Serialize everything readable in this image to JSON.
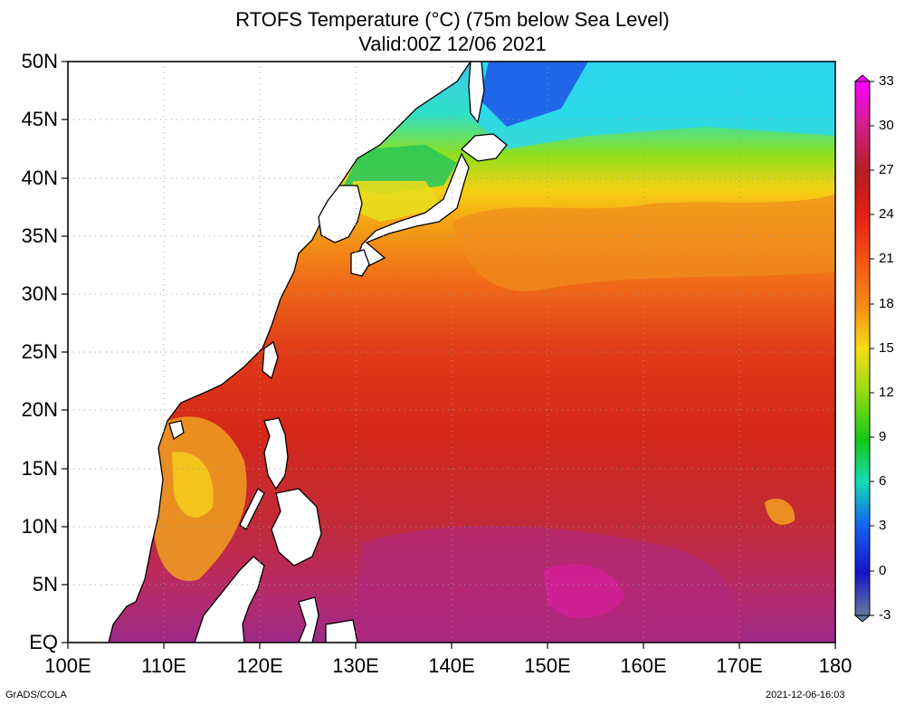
{
  "title": {
    "line1": "RTOFS Temperature (°C) (75m below Sea Level)",
    "line2": "Valid:00Z 12/06 2021"
  },
  "map": {
    "lat_labels": [
      "50N",
      "45N",
      "40N",
      "35N",
      "30N",
      "25N",
      "20N",
      "15N",
      "10N",
      "5N",
      "EQ"
    ],
    "lon_labels": [
      "100E",
      "110E",
      "120E",
      "130E",
      "140E",
      "150E",
      "160E",
      "170E",
      "180"
    ],
    "lat_range": [
      0,
      50
    ],
    "lon_range": [
      100,
      180
    ],
    "grid": "dotted"
  },
  "colorbar": {
    "labels": [
      "33",
      "30",
      "27",
      "24",
      "21",
      "18",
      "15",
      "12",
      "9",
      "6",
      "3",
      "0",
      "-3"
    ],
    "range": [
      -3,
      33
    ],
    "colors": [
      "#ff00ff",
      "#d21e8c",
      "#b41e1e",
      "#e61e14",
      "#f55014",
      "#f58c14",
      "#f5dc14",
      "#96dc14",
      "#14c814",
      "#14dcb4",
      "#1464f0",
      "#1414c8",
      "#6478a0"
    ]
  },
  "footer": {
    "left": "GrADS/COLA",
    "right": "2021-12-06-16:03"
  }
}
